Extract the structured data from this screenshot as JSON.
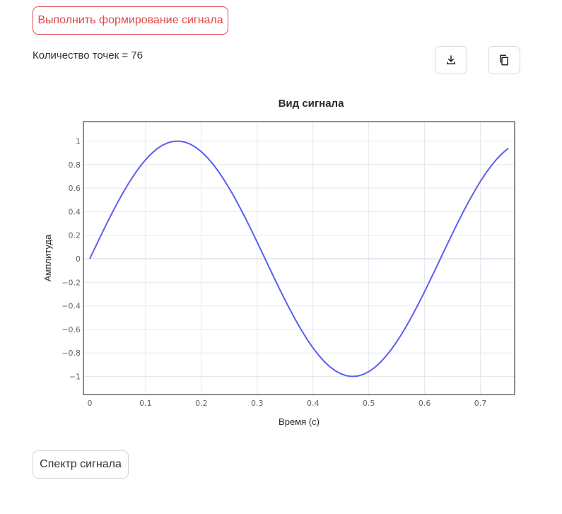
{
  "actions": {
    "generate_label": "Выполнить формирование сигнала",
    "spectrum_label": "Спектр сигнала"
  },
  "info": {
    "points_text": "Количество точек = 76"
  },
  "toolbar": {
    "download_icon": "download-icon",
    "copy_icon": "copy-icon"
  },
  "colors": {
    "accent": "#e04a4a",
    "line": "#5b5ef0"
  },
  "chart_data": {
    "type": "line",
    "title": "Вид сигнала",
    "xlabel": "Время (с)",
    "ylabel": "Амплитуда",
    "xlim": [
      0,
      0.75
    ],
    "ylim": [
      -1.1,
      1.1
    ],
    "x_ticks": [
      0,
      0.1,
      0.2,
      0.3,
      0.4,
      0.5,
      0.6,
      0.7
    ],
    "x_tick_labels": [
      "0",
      "0.1",
      "0.2",
      "0.3",
      "0.4",
      "0.5",
      "0.6",
      "0.7"
    ],
    "y_ticks": [
      1,
      0.8,
      0.6,
      0.4,
      0.2,
      0,
      -0.2,
      -0.4,
      -0.6,
      -0.8,
      -1
    ],
    "y_tick_labels": [
      "1",
      "0.8",
      "0.6",
      "0.4",
      "0.2",
      "0",
      "−0.2",
      "−0.4",
      "−0.6",
      "−0.8",
      "−1"
    ],
    "grid": true,
    "series": [
      {
        "x": [
          0,
          0.01,
          0.02,
          0.03,
          0.04,
          0.05,
          0.06,
          0.07,
          0.08,
          0.09,
          0.1,
          0.11,
          0.12,
          0.13,
          0.14,
          0.15,
          0.16,
          0.17,
          0.18,
          0.19,
          0.2,
          0.21,
          0.22,
          0.23,
          0.24,
          0.25,
          0.26,
          0.27,
          0.28,
          0.29,
          0.3,
          0.31,
          0.32,
          0.33,
          0.34,
          0.35,
          0.36,
          0.37,
          0.38,
          0.39,
          0.4,
          0.41,
          0.42,
          0.43,
          0.44,
          0.45,
          0.46,
          0.47,
          0.48,
          0.49,
          0.5,
          0.51,
          0.52,
          0.53,
          0.54,
          0.55,
          0.56,
          0.57,
          0.58,
          0.59,
          0.6,
          0.61,
          0.62,
          0.63,
          0.64,
          0.65,
          0.66,
          0.67,
          0.68,
          0.69,
          0.7,
          0.71,
          0.72,
          0.73,
          0.74,
          0.75
        ],
        "y": [
          0,
          0.0998,
          0.1987,
          0.2955,
          0.3894,
          0.4794,
          0.5646,
          0.6442,
          0.7174,
          0.7833,
          0.8415,
          0.8912,
          0.932,
          0.9636,
          0.9854,
          0.9975,
          0.9996,
          0.9917,
          0.9738,
          0.9463,
          0.9093,
          0.8632,
          0.8085,
          0.7457,
          0.6755,
          0.5985,
          0.5155,
          0.4274,
          0.335,
          0.2392,
          0.1411,
          0.0416,
          -0.0584,
          -0.1577,
          -0.2555,
          -0.3508,
          -0.4425,
          -0.5298,
          -0.6119,
          -0.6878,
          -0.7568,
          -0.8183,
          -0.8716,
          -0.9162,
          -0.9516,
          -0.9775,
          -0.9937,
          -0.9999,
          -0.9962,
          -0.9825,
          -0.9589,
          -0.9258,
          -0.8835,
          -0.8323,
          -0.7728,
          -0.7055,
          -0.6313,
          -0.5507,
          -0.4646,
          -0.3739,
          -0.2794,
          -0.1822,
          -0.0831,
          0.0168,
          0.1165,
          0.2151,
          0.3115,
          0.4048,
          0.4941,
          0.5784,
          0.657,
          0.729,
          0.7937,
          0.8504,
          0.8987,
          0.938
        ]
      }
    ]
  }
}
